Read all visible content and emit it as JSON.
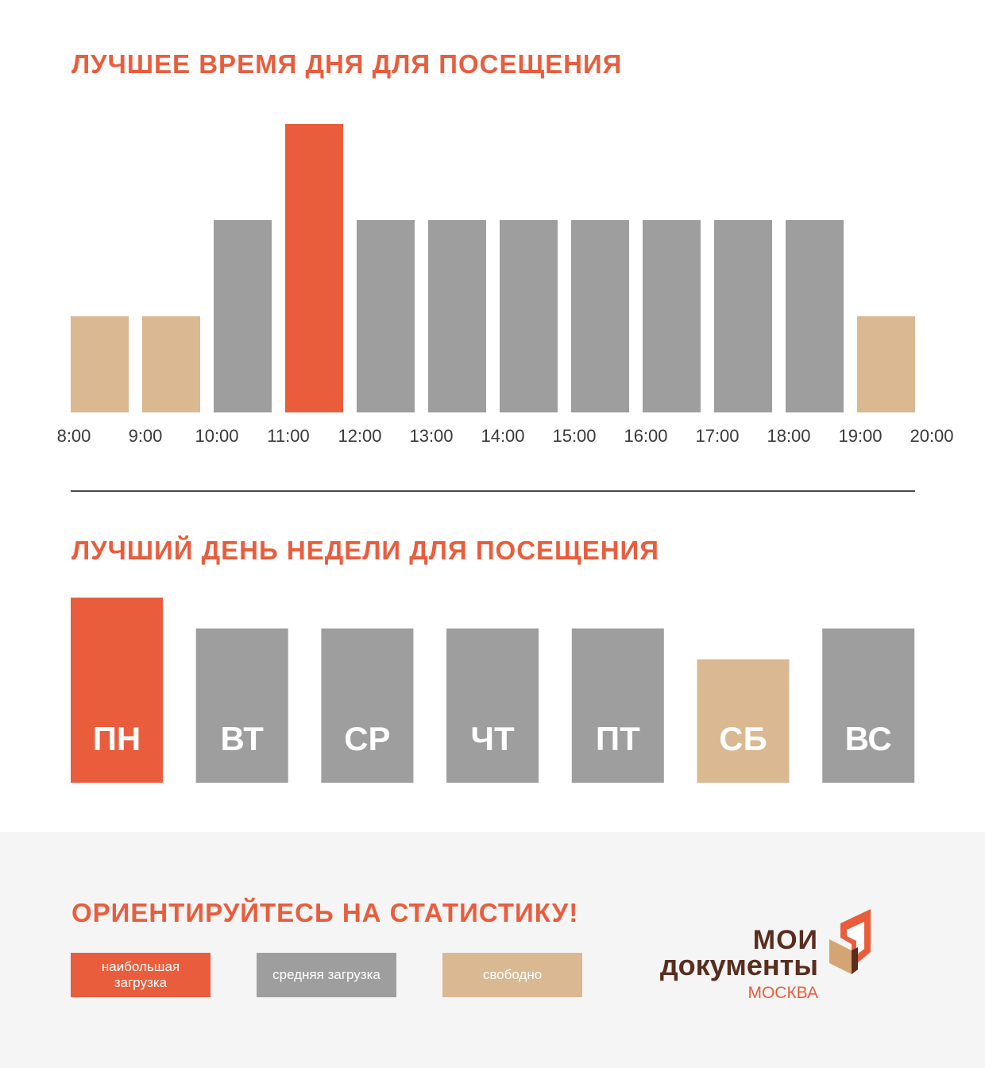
{
  "colors": {
    "high": "#e95d3d",
    "medium": "#9e9e9e",
    "free": "#dab891",
    "title": "#e95d3d"
  },
  "section_time": {
    "title": "ЛУЧШЕЕ ВРЕМЯ ДНЯ ДЛЯ ПОСЕЩЕНИЯ"
  },
  "section_week": {
    "title": "ЛУЧШИЙ ДЕНЬ НЕДЕЛИ ДЛЯ ПОСЕЩЕНИЯ"
  },
  "chart_data": [
    {
      "type": "bar",
      "title": "ЛУЧШЕЕ ВРЕМЯ ДНЯ ДЛЯ ПОСЕЩЕНИЯ",
      "tick_labels": [
        "8:00",
        "9:00",
        "10:00",
        "11:00",
        "12:00",
        "13:00",
        "14:00",
        "15:00",
        "16:00",
        "17:00",
        "18:00",
        "19:00",
        "20:00"
      ],
      "categories": [
        "8:00–9:00",
        "9:00–10:00",
        "10:00–11:00",
        "11:00–12:00",
        "12:00–13:00",
        "13:00–14:00",
        "14:00–15:00",
        "15:00–16:00",
        "16:00–17:00",
        "17:00–18:00",
        "18:00–19:00",
        "19:00–20:00"
      ],
      "values": [
        1,
        1,
        2,
        3,
        2,
        2,
        2,
        2,
        2,
        2,
        2,
        1
      ],
      "levels": [
        "free",
        "free",
        "medium",
        "high",
        "medium",
        "medium",
        "medium",
        "medium",
        "medium",
        "medium",
        "medium",
        "free"
      ],
      "ylim": [
        0,
        3
      ],
      "grid": false
    },
    {
      "type": "bar",
      "title": "ЛУЧШИЙ ДЕНЬ НЕДЕЛИ ДЛЯ ПОСЕЩЕНИЯ",
      "categories": [
        "ПН",
        "ВТ",
        "СР",
        "ЧТ",
        "ПТ",
        "СБ",
        "ВС"
      ],
      "values": [
        3,
        2.5,
        2.5,
        2.5,
        2.5,
        2,
        2.5
      ],
      "levels": [
        "high",
        "medium",
        "medium",
        "medium",
        "medium",
        "free",
        "medium"
      ],
      "ylim": [
        0,
        3
      ],
      "grid": false
    }
  ],
  "footer": {
    "title": "ОРИЕНТИРУЙТЕСЬ НА СТАТИСТИКУ!",
    "legend": [
      {
        "key": "high",
        "label": "наибольшая загрузка"
      },
      {
        "key": "medium",
        "label": "средняя загрузка"
      },
      {
        "key": "free",
        "label": "свободно"
      }
    ]
  },
  "logo": {
    "line1": "МОИ",
    "line2": "документы",
    "city": "МОСКВА"
  }
}
